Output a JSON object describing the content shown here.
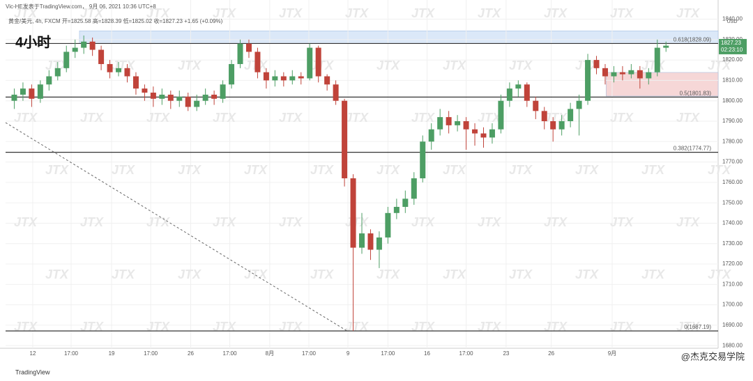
{
  "header": {
    "byline": "Vic-HE发表于TradingView.com， 9月 06, 2021 10:36 UTC+8",
    "info": "黄金/美元, 4h, FXCM  开=1825.58  高=1828.39  低=1825.02  收=1827.23  +1.65 (+0.09%)",
    "timeframe": "4小时",
    "watermark": "JTX"
  },
  "footer": {
    "brand": "TradingView",
    "credit": "@杰克交易学院"
  },
  "chart_data": {
    "type": "candlestick",
    "currency": "USD",
    "up_color": "#4d9e64",
    "down_color": "#c0433a",
    "x": [
      0,
      1,
      2,
      3,
      4,
      5,
      6,
      7,
      8,
      9,
      10,
      11,
      12,
      13,
      14,
      15,
      16,
      17,
      18,
      19,
      20,
      21,
      22,
      23,
      24,
      25,
      26,
      27,
      28,
      29,
      30,
      31,
      32,
      33,
      34,
      35,
      36,
      37,
      38,
      39,
      40,
      41,
      42,
      43,
      44,
      45,
      46,
      47,
      48,
      49,
      50,
      51,
      52,
      53,
      54,
      55,
      56,
      57,
      58,
      59,
      60,
      61,
      62,
      63,
      64,
      65,
      66,
      67,
      68,
      69,
      70,
      71,
      72,
      73,
      74,
      75
    ],
    "open": [
      1800,
      1803,
      1806,
      1801,
      1808,
      1812,
      1816,
      1824,
      1826,
      1829,
      1825,
      1818,
      1814,
      1816,
      1812,
      1806,
      1804,
      1801,
      1803,
      1800,
      1802,
      1797,
      1800,
      1803,
      1801,
      1808,
      1818,
      1828,
      1824,
      1814,
      1810,
      1812,
      1810,
      1812,
      1811,
      1826,
      1812,
      1808,
      1800,
      1762,
      1728,
      1735,
      1727,
      1733,
      1745,
      1748,
      1752,
      1762,
      1780,
      1786,
      1792,
      1788,
      1790,
      1786,
      1784,
      1782,
      1786,
      1800,
      1806,
      1808,
      1800,
      1795,
      1790,
      1786,
      1790,
      1796,
      1800,
      1820,
      1816,
      1812,
      1814,
      1813,
      1815,
      1811,
      1814,
      1826
    ],
    "high": [
      1806,
      1809,
      1808,
      1810,
      1815,
      1819,
      1827,
      1830,
      1832,
      1831,
      1827,
      1820,
      1819,
      1818,
      1814,
      1808,
      1807,
      1806,
      1805,
      1805,
      1804,
      1803,
      1806,
      1805,
      1810,
      1820,
      1830,
      1830,
      1826,
      1816,
      1815,
      1814,
      1815,
      1814,
      1828,
      1827,
      1813,
      1810,
      1801,
      1764,
      1745,
      1737,
      1736,
      1748,
      1752,
      1756,
      1765,
      1783,
      1789,
      1796,
      1795,
      1793,
      1792,
      1789,
      1787,
      1789,
      1803,
      1809,
      1810,
      1809,
      1802,
      1797,
      1792,
      1793,
      1799,
      1803,
      1823,
      1822,
      1818,
      1817,
      1817,
      1818,
      1817,
      1816,
      1830,
      1829
    ],
    "low": [
      1796,
      1800,
      1797,
      1799,
      1805,
      1810,
      1814,
      1821,
      1823,
      1822,
      1815,
      1811,
      1812,
      1809,
      1803,
      1800,
      1797,
      1798,
      1796,
      1797,
      1795,
      1795,
      1798,
      1798,
      1799,
      1806,
      1816,
      1821,
      1811,
      1806,
      1807,
      1807,
      1808,
      1808,
      1810,
      1809,
      1805,
      1798,
      1758,
      1687.19,
      1725,
      1722,
      1718,
      1730,
      1742,
      1745,
      1749,
      1760,
      1776,
      1783,
      1784,
      1785,
      1776,
      1778,
      1777,
      1779,
      1784,
      1797,
      1802,
      1797,
      1791,
      1786,
      1780,
      1783,
      1787,
      1783,
      1798,
      1813,
      1808,
      1809,
      1810,
      1811,
      1806,
      1808,
      1812,
      1824
    ],
    "close": [
      1803,
      1806,
      1801,
      1808,
      1812,
      1816,
      1824,
      1826,
      1829,
      1825,
      1818,
      1814,
      1816,
      1812,
      1806,
      1804,
      1801,
      1803,
      1800,
      1802,
      1797,
      1800,
      1803,
      1801,
      1808,
      1818,
      1828,
      1824,
      1814,
      1810,
      1812,
      1810,
      1812,
      1811,
      1826,
      1812,
      1808,
      1800,
      1762,
      1728,
      1735,
      1727,
      1733,
      1745,
      1748,
      1752,
      1762,
      1780,
      1786,
      1792,
      1788,
      1790,
      1786,
      1784,
      1782,
      1786,
      1800,
      1806,
      1808,
      1800,
      1795,
      1790,
      1786,
      1790,
      1796,
      1800,
      1820,
      1816,
      1812,
      1814,
      1813,
      1815,
      1811,
      1814,
      1826,
      1827
    ],
    "xlim": [
      -1,
      81
    ],
    "xticks": [
      {
        "value": 2.13,
        "label": "12"
      },
      {
        "value": 6.54,
        "label": "17:00"
      },
      {
        "value": 11.2,
        "label": "19"
      },
      {
        "value": 15.7,
        "label": "17:00"
      },
      {
        "value": 20.3,
        "label": "26"
      },
      {
        "value": 24.8,
        "label": "17:00"
      },
      {
        "value": 29.4,
        "label": "8月"
      },
      {
        "value": 33.9,
        "label": "17:00"
      },
      {
        "value": 38.4,
        "label": "9"
      },
      {
        "value": 43,
        "label": "17:00"
      },
      {
        "value": 47.5,
        "label": "16"
      },
      {
        "value": 52,
        "label": "17:00"
      },
      {
        "value": 56.6,
        "label": "23"
      },
      {
        "value": 61.8,
        "label": "26"
      },
      {
        "value": 68.8,
        "label": "9月"
      }
    ],
    "ylim": [
      1678.7,
      1849.4
    ],
    "yticks": [
      {
        "value": 1680,
        "label": "1680.00"
      },
      {
        "value": 1690,
        "label": "1690.00"
      },
      {
        "value": 1700,
        "label": "1700.00"
      },
      {
        "value": 1710,
        "label": "1710.00"
      },
      {
        "value": 1720,
        "label": "1720.00"
      },
      {
        "value": 1730,
        "label": "1730.00"
      },
      {
        "value": 1740,
        "label": "1740.00"
      },
      {
        "value": 1750,
        "label": "1750.00"
      },
      {
        "value": 1760,
        "label": "1760.00"
      },
      {
        "value": 1770,
        "label": "1770.00"
      },
      {
        "value": 1780,
        "label": "1780.00"
      },
      {
        "value": 1790,
        "label": "1790.00"
      },
      {
        "value": 1800,
        "label": "1800.00"
      },
      {
        "value": 1810,
        "label": "1810.00"
      },
      {
        "value": 1820,
        "label": "1820.00"
      },
      {
        "value": 1830,
        "label": "1830.00"
      },
      {
        "value": 1840,
        "label": "1840.00"
      }
    ],
    "levels": [
      {
        "value": 1828.09,
        "label": "0.618(1828.09)"
      },
      {
        "value": 1801.83,
        "label": "0.5(1801.83)"
      },
      {
        "value": 1774.77,
        "label": "0.382(1774.77)"
      },
      {
        "value": 1687.19,
        "label": "0(1687.19)"
      }
    ],
    "zones": [
      {
        "x": [
          7.5,
          81
        ],
        "y": [
          1828.09,
          1834.3
        ],
        "color": "#dbe8f8"
      },
      {
        "x": [
          68.1,
          81
        ],
        "y": [
          1802.3,
          1813.9
        ],
        "color": "#f6d7d7"
      }
    ],
    "trendline": {
      "x": [
        -1,
        38.3
      ],
      "y": [
        1789.3,
        1687.19
      ]
    },
    "price_tag": {
      "value": 1827.23,
      "countdown": "02:23:10"
    }
  }
}
